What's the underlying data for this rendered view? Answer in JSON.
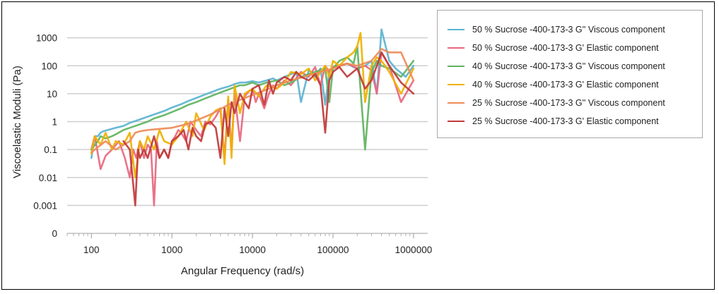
{
  "chart_data": {
    "type": "line",
    "xscale": "log",
    "yscale": "log",
    "xlabel": "Angular Frequency (rad/s)",
    "ylabel": "Viscoelastic Moduli (Pa)",
    "xlim": [
      50,
      1500000
    ],
    "ylim": [
      0.0001,
      10000
    ],
    "x_ticks": [
      {
        "value": 100,
        "label": "100"
      },
      {
        "value": 1000,
        "label": "1000"
      },
      {
        "value": 10000,
        "label": "10000"
      },
      {
        "value": 100000,
        "label": "100000"
      },
      {
        "value": 1000000,
        "label": "1000000"
      }
    ],
    "y_ticks": [
      {
        "value": 0.0001,
        "label": "0"
      },
      {
        "value": 0.001,
        "label": "0.001"
      },
      {
        "value": 0.01,
        "label": "0.01"
      },
      {
        "value": 0.1,
        "label": "0.1"
      },
      {
        "value": 1,
        "label": "1"
      },
      {
        "value": 10,
        "label": "10"
      },
      {
        "value": 100,
        "label": "100"
      },
      {
        "value": 1000,
        "label": "1000"
      }
    ],
    "series": [
      {
        "name": "50 % Sucrose -400-173-3 G'' Viscous component",
        "color": "#5bb3d0",
        "x": [
          100,
          110,
          120,
          130,
          140,
          160,
          200,
          250,
          300,
          400,
          500,
          600,
          800,
          1000,
          1300,
          1600,
          2000,
          2500,
          3000,
          4000,
          5000,
          6000,
          7000,
          8000,
          10000,
          12000,
          15000,
          18000,
          20000,
          25000,
          30000,
          35000,
          40000,
          50000,
          60000,
          70000,
          80000,
          90000,
          100000,
          120000,
          150000,
          180000,
          200000,
          250000,
          300000,
          350000,
          400000,
          500000,
          600000,
          800000,
          1000000
        ],
        "y": [
          0.05,
          0.3,
          0.3,
          0.4,
          0.45,
          0.5,
          0.6,
          0.7,
          0.9,
          1.2,
          1.5,
          1.8,
          2.4,
          3.2,
          4.2,
          5.5,
          7,
          9,
          11,
          15,
          18,
          22,
          25,
          25,
          28,
          25,
          30,
          35,
          30,
          40,
          50,
          60,
          5,
          70,
          40,
          80,
          4,
          60,
          80,
          100,
          120,
          90,
          80,
          100,
          150,
          10,
          2000,
          150,
          80,
          40,
          100
        ]
      },
      {
        "name": "50 % Sucrose -400-173-3 G' Elastic component",
        "color": "#e8677e",
        "x": [
          100,
          110,
          130,
          150,
          180,
          220,
          260,
          300,
          330,
          360,
          400,
          450,
          500,
          550,
          600,
          650,
          700,
          800,
          900,
          1000,
          1100,
          1200,
          1300,
          1500,
          1700,
          2000,
          2300,
          2600,
          3000,
          3500,
          4000,
          4500,
          5000,
          5500,
          6000,
          7000,
          8000,
          9000,
          10000,
          11000,
          12000,
          14000,
          16000,
          18000,
          20000,
          25000,
          30000,
          40000,
          50000,
          60000,
          70000,
          80000,
          90000,
          100000,
          150000,
          200000,
          250000,
          300000,
          350000,
          400000,
          500000,
          700000,
          1000000
        ],
        "y": [
          0.1,
          0.3,
          0.02,
          0.06,
          0.1,
          0.2,
          0.05,
          0.01,
          0.1,
          0.05,
          0.2,
          0.05,
          0.15,
          0.1,
          0.001,
          0.2,
          0.05,
          0.1,
          0.05,
          0.2,
          0.3,
          0.5,
          0.4,
          0.2,
          1,
          0.5,
          0.3,
          1,
          0.8,
          1.5,
          3,
          0.05,
          6,
          0.1,
          10,
          0.2,
          8,
          12,
          15,
          5,
          10,
          3,
          10,
          20,
          15,
          30,
          20,
          60,
          40,
          90,
          20,
          100,
          60,
          90,
          120,
          80,
          100,
          70,
          10,
          300,
          100,
          5,
          30
        ]
      },
      {
        "name": "40 % Sucrose -400-173-3 G'' Viscous component",
        "color": "#5fb35f",
        "x": [
          100,
          120,
          130,
          150,
          180,
          200,
          250,
          300,
          400,
          500,
          600,
          800,
          1000,
          1300,
          1600,
          2000,
          2500,
          3000,
          4000,
          5000,
          6000,
          7000,
          8000,
          10000,
          12000,
          15000,
          20000,
          25000,
          30000,
          40000,
          50000,
          60000,
          70000,
          80000,
          90000,
          100000,
          120000,
          150000,
          180000,
          200000,
          250000,
          300000,
          350000,
          400000,
          500000,
          700000,
          1000000
        ],
        "y": [
          0.1,
          0.2,
          0.3,
          0.25,
          0.3,
          0.35,
          0.5,
          0.6,
          0.8,
          1,
          1.3,
          1.7,
          2.2,
          3,
          4,
          5,
          6.5,
          8,
          11,
          14,
          17,
          20,
          20,
          25,
          20,
          25,
          30,
          20,
          25,
          40,
          50,
          60,
          70,
          80,
          5,
          80,
          150,
          200,
          120,
          500,
          0.1,
          60,
          150,
          100,
          80,
          40,
          150
        ]
      },
      {
        "name": "40 % Sucrose -400-173-3 G' Elastic component",
        "color": "#f0b000",
        "x": [
          100,
          110,
          130,
          150,
          180,
          200,
          250,
          300,
          350,
          400,
          450,
          500,
          600,
          700,
          800,
          1000,
          1200,
          1500,
          1800,
          2000,
          2500,
          3000,
          3500,
          4000,
          4500,
          5000,
          5500,
          6000,
          7000,
          8000,
          10000,
          12000,
          15000,
          20000,
          25000,
          30000,
          40000,
          50000,
          60000,
          70000,
          80000,
          90000,
          100000,
          120000,
          150000,
          180000,
          200000,
          220000,
          250000,
          300000,
          350000,
          400000,
          500000,
          700000,
          1000000
        ],
        "y": [
          0.07,
          0.3,
          0.15,
          0.4,
          0.1,
          0.2,
          0.15,
          0.4,
          0.01,
          0.2,
          0.1,
          0.3,
          0.1,
          0.5,
          0.2,
          0.15,
          0.3,
          1,
          0.3,
          2,
          0.5,
          1.5,
          2.5,
          3,
          0.03,
          8,
          0.05,
          20,
          2,
          10,
          15,
          8,
          20,
          15,
          25,
          60,
          50,
          80,
          30,
          60,
          100,
          40,
          150,
          100,
          200,
          300,
          500,
          1500,
          5,
          100,
          200,
          150,
          60,
          10,
          80
        ]
      },
      {
        "name": "25 % Sucrose -400-173-3 G'' Viscous component",
        "color": "#ee8b57",
        "x": [
          100,
          150,
          200,
          300,
          350,
          400,
          500,
          700,
          1000,
          1500,
          2000,
          3000,
          4000,
          5000,
          7000,
          10000,
          15000,
          20000,
          30000,
          50000,
          70000,
          100000,
          150000,
          200000,
          300000,
          400000,
          500000,
          700000,
          1000000
        ],
        "y": [
          0.08,
          0.2,
          0.1,
          0.2,
          0.4,
          0.45,
          0.5,
          0.55,
          0.6,
          0.8,
          1.1,
          1.8,
          2.8,
          4,
          6,
          9,
          14,
          20,
          30,
          45,
          60,
          80,
          120,
          100,
          150,
          400,
          300,
          300,
          30
        ]
      },
      {
        "name": "25 % Sucrose -400-173-3 G' Elastic component",
        "color": "#c03a3a",
        "x": [
          250,
          300,
          350,
          380,
          400,
          450,
          500,
          600,
          700,
          800,
          900,
          1000,
          1200,
          1400,
          1600,
          1800,
          2000,
          2300,
          2600,
          3000,
          3500,
          4000,
          4500,
          5000,
          5500,
          6000,
          7000,
          8000,
          9000,
          10000,
          12000,
          14000,
          16000,
          18000,
          20000,
          25000,
          30000,
          35000,
          40000,
          50000,
          60000,
          70000,
          80000,
          90000,
          100000,
          120000,
          150000,
          200000,
          250000,
          300000,
          350000,
          400000,
          500000,
          700000,
          1000000
        ],
        "y": [
          0.2,
          0.1,
          0.001,
          0.1,
          0.05,
          0.1,
          0.05,
          0.3,
          0.05,
          0.1,
          0.05,
          0.2,
          0.3,
          0.5,
          0.1,
          0.6,
          0.3,
          0.2,
          0.8,
          1,
          0.6,
          0.05,
          3,
          0.3,
          5,
          2,
          10,
          5,
          3,
          15,
          20,
          4,
          30,
          10,
          25,
          40,
          30,
          60,
          40,
          30,
          50,
          20,
          0.4,
          30,
          60,
          90,
          40,
          80,
          15,
          30,
          100,
          300,
          100,
          25,
          10
        ]
      }
    ]
  }
}
